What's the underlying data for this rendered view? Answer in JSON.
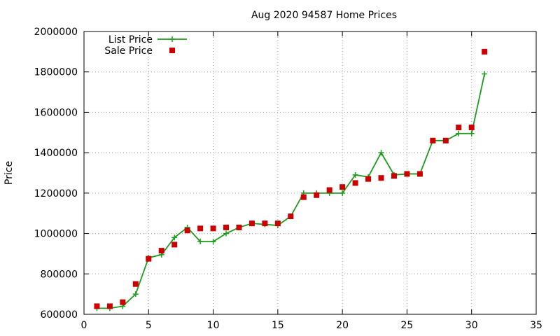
{
  "chart_data": {
    "type": "line",
    "title": "Aug 2020 94587 Home Prices",
    "xlabel": "",
    "ylabel": "Price",
    "xlim": [
      0,
      35
    ],
    "ylim": [
      600000,
      2000000
    ],
    "x_ticks": [
      0,
      5,
      10,
      15,
      20,
      25,
      30,
      35
    ],
    "y_ticks": [
      600000,
      800000,
      1000000,
      1200000,
      1400000,
      1600000,
      1800000,
      2000000
    ],
    "grid": true,
    "legend_position": "top-left",
    "series": [
      {
        "name": "List Price",
        "style": "line-with-plus-markers",
        "color": "#1a9c1a",
        "x": [
          1,
          2,
          3,
          4,
          5,
          6,
          7,
          8,
          9,
          10,
          11,
          12,
          13,
          14,
          15,
          16,
          17,
          18,
          19,
          20,
          21,
          22,
          23,
          24,
          25,
          26,
          27,
          28,
          29,
          30,
          31
        ],
        "values": [
          630000,
          630000,
          640000,
          700000,
          880000,
          895000,
          980000,
          1030000,
          960000,
          960000,
          1000000,
          1030000,
          1050000,
          1045000,
          1040000,
          1085000,
          1200000,
          1200000,
          1200000,
          1200000,
          1290000,
          1280000,
          1400000,
          1290000,
          1295000,
          1295000,
          1460000,
          1460000,
          1495000,
          1495000,
          1790000
        ]
      },
      {
        "name": "Sale Price",
        "style": "square-markers",
        "color": "#cc0000",
        "x": [
          1,
          2,
          3,
          4,
          5,
          6,
          7,
          8,
          9,
          10,
          11,
          12,
          13,
          14,
          15,
          16,
          17,
          18,
          19,
          20,
          21,
          22,
          23,
          24,
          25,
          26,
          27,
          28,
          29,
          30,
          31
        ],
        "values": [
          640000,
          640000,
          660000,
          750000,
          875000,
          915000,
          945000,
          1015000,
          1025000,
          1025000,
          1030000,
          1030000,
          1050000,
          1050000,
          1050000,
          1085000,
          1180000,
          1190000,
          1215000,
          1230000,
          1250000,
          1270000,
          1275000,
          1285000,
          1295000,
          1295000,
          1460000,
          1460000,
          1525000,
          1525000,
          1900000
        ]
      }
    ]
  }
}
